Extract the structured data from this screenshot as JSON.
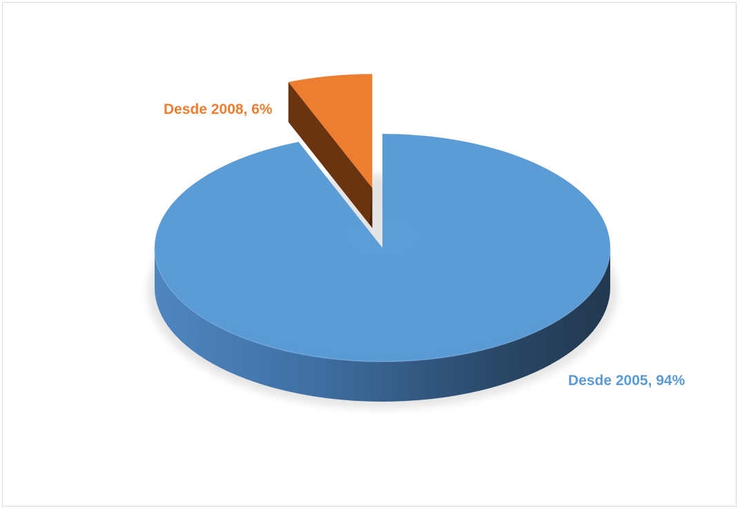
{
  "chart_data": {
    "type": "pie",
    "style": "3d-exploded",
    "title": "",
    "legend": "none",
    "slices": [
      {
        "label": "Desde 2005",
        "value": 94,
        "value_label": "94%",
        "text": "Desde 2005, 94%",
        "color": "#5b9bd5"
      },
      {
        "label": "Desde 2008",
        "value": 6,
        "value_label": "6%",
        "text": "Desde 2008, 6%",
        "color": "#ed7d31"
      }
    ],
    "colors": {
      "blue_top": "#5b9bd5",
      "blue_side_light": "#4f86bf",
      "blue_side_dark": "#243b55",
      "orange_top": "#ed7d31",
      "orange_side": "#6b3410",
      "orange_side_dark": "#4a230a",
      "frame_border": "#d9d9d9"
    }
  }
}
